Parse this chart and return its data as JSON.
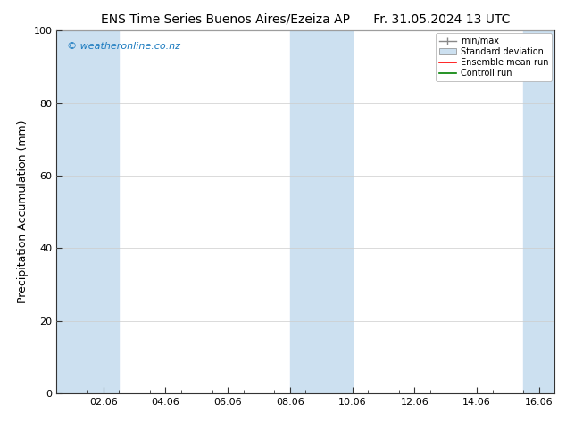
{
  "title_left": "ENS Time Series Buenos Aires/Ezeiza AP",
  "title_right": "Fr. 31.05.2024 13 UTC",
  "ylabel": "Precipitation Accumulation (mm)",
  "watermark": "© weatheronline.co.nz",
  "ylim": [
    0,
    100
  ],
  "yticks": [
    0,
    20,
    40,
    60,
    80,
    100
  ],
  "xlim": [
    0.5,
    16.5
  ],
  "xtick_labels": [
    "02.06",
    "04.06",
    "06.06",
    "08.06",
    "10.06",
    "12.06",
    "14.06",
    "16.06"
  ],
  "xtick_positions": [
    2,
    4,
    6,
    8,
    10,
    12,
    14,
    16
  ],
  "shaded_bands": [
    {
      "x_start": 0.5,
      "x_end": 2.5
    },
    {
      "x_start": 8.0,
      "x_end": 10.0
    },
    {
      "x_start": 15.5,
      "x_end": 16.5
    }
  ],
  "band_color": "#cce0f0",
  "background_color": "#ffffff",
  "grid_color": "#cccccc",
  "legend_labels": [
    "min/max",
    "Standard deviation",
    "Ensemble mean run",
    "Controll run"
  ],
  "legend_colors_line": [
    "#888888",
    "#b8d4e8",
    "#ff0000",
    "#008000"
  ],
  "title_fontsize": 10,
  "axis_label_fontsize": 9,
  "tick_fontsize": 8,
  "watermark_color": "#1a7abf",
  "spine_color": "#333333"
}
